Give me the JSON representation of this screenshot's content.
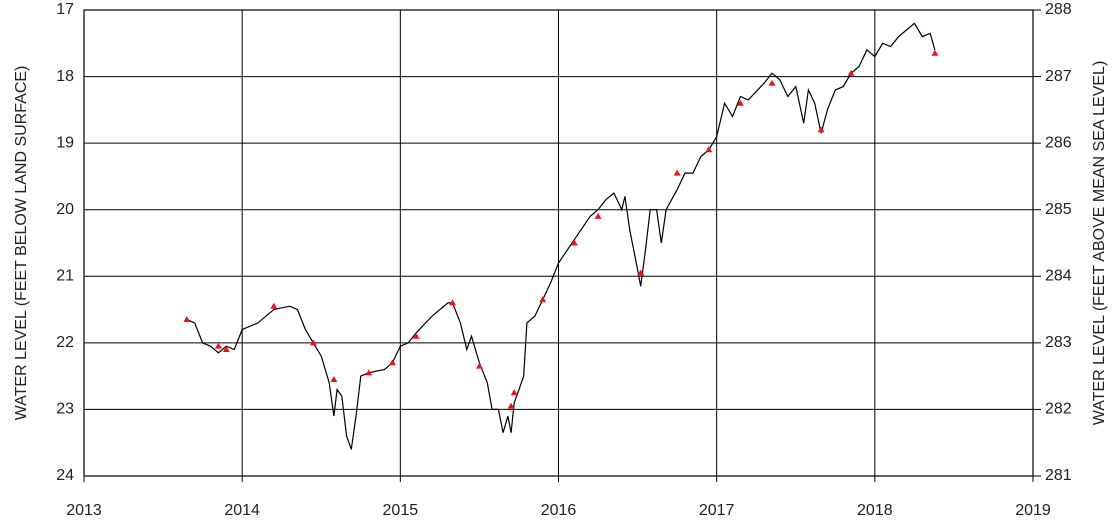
{
  "chart_data": {
    "type": "line",
    "y_label": "WATER LEVEL (FEET BELOW LAND SURFACE)",
    "y2_label": "WATER LEVEL (FEET ABOVE MEAN SEA LEVEL)",
    "xlim": [
      2013,
      2019
    ],
    "xticks": [
      2013,
      2014,
      2015,
      2016,
      2017,
      2018,
      2019
    ],
    "ylim": [
      17,
      24
    ],
    "y_inverted": true,
    "yticks": [
      17,
      18,
      19,
      20,
      21,
      22,
      23,
      24
    ],
    "y2lim": [
      281,
      288
    ],
    "y2ticks": [
      281,
      282,
      283,
      284,
      285,
      286,
      287,
      288
    ],
    "grid": true,
    "series": [
      {
        "color": "#000000",
        "style": "line",
        "x": [
          2013.65,
          2013.7,
          2013.75,
          2013.8,
          2013.85,
          2013.9,
          2013.95,
          2014.0,
          2014.1,
          2014.15,
          2014.2,
          2014.3,
          2014.35,
          2014.4,
          2014.45,
          2014.5,
          2014.55,
          2014.58,
          2014.6,
          2014.63,
          2014.66,
          2014.69,
          2014.72,
          2014.75,
          2014.8,
          2014.9,
          2014.95,
          2015.0,
          2015.05,
          2015.1,
          2015.2,
          2015.3,
          2015.33,
          2015.38,
          2015.42,
          2015.45,
          2015.5,
          2015.55,
          2015.58,
          2015.62,
          2015.65,
          2015.68,
          2015.7,
          2015.72,
          2015.75,
          2015.78,
          2015.8,
          2015.85,
          2015.9,
          2015.95,
          2016.0,
          2016.1,
          2016.2,
          2016.25,
          2016.3,
          2016.35,
          2016.4,
          2016.42,
          2016.45,
          2016.5,
          2016.52,
          2016.55,
          2016.58,
          2016.62,
          2016.65,
          2016.68,
          2016.75,
          2016.8,
          2016.85,
          2016.9,
          2016.95,
          2017.0,
          2017.05,
          2017.1,
          2017.15,
          2017.2,
          2017.3,
          2017.35,
          2017.4,
          2017.45,
          2017.5,
          2017.55,
          2017.58,
          2017.62,
          2017.66,
          2017.7,
          2017.75,
          2017.8,
          2017.85,
          2017.9,
          2017.95,
          2018.0,
          2018.05,
          2018.1,
          2018.15,
          2018.2,
          2018.25,
          2018.3,
          2018.35,
          2018.38
        ],
        "values": [
          21.65,
          21.7,
          22.0,
          22.05,
          22.15,
          22.05,
          22.1,
          21.8,
          21.7,
          21.6,
          21.5,
          21.45,
          21.5,
          21.8,
          22.0,
          22.2,
          22.6,
          23.1,
          22.7,
          22.8,
          23.4,
          23.6,
          23.1,
          22.5,
          22.45,
          22.4,
          22.3,
          22.05,
          22.0,
          21.85,
          21.6,
          21.4,
          21.4,
          21.7,
          22.1,
          21.9,
          22.3,
          22.6,
          23.0,
          23.0,
          23.35,
          23.1,
          23.35,
          22.9,
          22.7,
          22.5,
          21.7,
          21.6,
          21.35,
          21.1,
          20.8,
          20.45,
          20.1,
          20.0,
          19.85,
          19.75,
          20.0,
          19.8,
          20.3,
          20.9,
          21.15,
          20.6,
          20.0,
          20.0,
          20.5,
          20.0,
          19.7,
          19.45,
          19.45,
          19.2,
          19.1,
          18.9,
          18.4,
          18.6,
          18.3,
          18.35,
          18.1,
          17.95,
          18.05,
          18.3,
          18.15,
          18.7,
          18.2,
          18.4,
          18.85,
          18.5,
          18.2,
          18.15,
          17.95,
          17.85,
          17.6,
          17.7,
          17.5,
          17.55,
          17.4,
          17.3,
          17.2,
          17.4,
          17.35,
          17.6
        ]
      },
      {
        "color": "#e8141c",
        "style": "markers",
        "x": [
          2013.65,
          2013.85,
          2013.9,
          2014.2,
          2014.45,
          2014.58,
          2014.8,
          2014.95,
          2015.1,
          2015.33,
          2015.5,
          2015.7,
          2015.72,
          2015.9,
          2016.1,
          2016.25,
          2016.52,
          2016.75,
          2016.95,
          2017.15,
          2017.35,
          2017.66,
          2017.85,
          2018.38
        ],
        "values": [
          21.65,
          22.05,
          22.1,
          21.45,
          22.0,
          22.55,
          22.45,
          22.3,
          21.9,
          21.4,
          22.35,
          22.95,
          22.75,
          21.35,
          20.5,
          20.1,
          20.95,
          19.45,
          19.1,
          18.4,
          18.1,
          18.8,
          17.95,
          17.65
        ]
      }
    ]
  }
}
